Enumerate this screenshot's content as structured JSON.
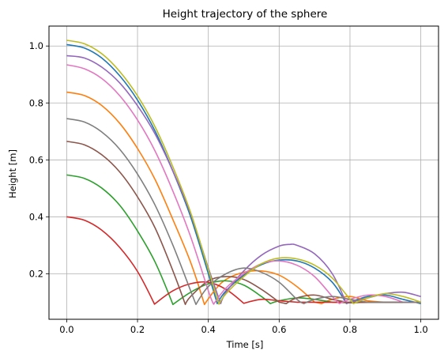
{
  "chart_data": {
    "type": "line",
    "title": "Height trajectory of the sphere",
    "xlabel": "Time [s]",
    "ylabel": "Height [m]",
    "xlim": [
      -0.05,
      1.05
    ],
    "ylim": [
      0.04,
      1.07
    ],
    "xticks": [
      0.0,
      0.2,
      0.4,
      0.6,
      0.8,
      1.0
    ],
    "xtick_labels": [
      "0.0",
      "0.2",
      "0.4",
      "0.6",
      "0.8",
      "1.0"
    ],
    "yticks": [
      0.2,
      0.4,
      0.6,
      0.8,
      1.0
    ],
    "ytick_labels": [
      "0.2",
      "0.4",
      "0.6",
      "0.8",
      "1.0"
    ],
    "grid": true,
    "legend": "none",
    "floor_height": 0.095,
    "series": [
      {
        "color": "#1f77b4",
        "x": [
          0.0,
          0.05,
          0.1,
          0.15,
          0.2,
          0.25,
          0.3,
          0.35,
          0.4,
          0.425,
          0.45,
          0.5,
          0.55,
          0.6,
          0.65,
          0.7,
          0.75,
          0.79,
          0.8,
          0.85,
          0.9,
          0.95,
          1.0
        ],
        "y": [
          1.005,
          0.993,
          0.957,
          0.895,
          0.81,
          0.7,
          0.56,
          0.4,
          0.2,
          0.095,
          0.14,
          0.195,
          0.232,
          0.248,
          0.245,
          0.22,
          0.17,
          0.095,
          0.1,
          0.12,
          0.125,
          0.11,
          0.095
        ]
      },
      {
        "color": "#ff7f0e",
        "x": [
          0.0,
          0.05,
          0.1,
          0.15,
          0.2,
          0.25,
          0.3,
          0.35,
          0.389,
          0.42,
          0.45,
          0.5,
          0.55,
          0.6,
          0.65,
          0.7,
          0.72,
          0.75,
          0.8,
          0.85,
          0.9,
          0.95,
          1.0
        ],
        "y": [
          0.838,
          0.826,
          0.79,
          0.728,
          0.64,
          0.53,
          0.39,
          0.24,
          0.092,
          0.145,
          0.18,
          0.205,
          0.21,
          0.195,
          0.155,
          0.1,
          0.095,
          0.11,
          0.12,
          0.105,
          0.1,
          0.1,
          0.1
        ]
      },
      {
        "color": "#2ca02c",
        "x": [
          0.0,
          0.05,
          0.1,
          0.15,
          0.2,
          0.25,
          0.3,
          0.35,
          0.4,
          0.45,
          0.5,
          0.55,
          0.575,
          0.6,
          0.65,
          0.7,
          0.75,
          0.8,
          0.85,
          0.9,
          0.95,
          1.0
        ],
        "y": [
          0.547,
          0.535,
          0.5,
          0.44,
          0.35,
          0.24,
          0.092,
          0.135,
          0.165,
          0.175,
          0.16,
          0.12,
          0.095,
          0.105,
          0.115,
          0.11,
          0.1,
          0.098,
          0.1,
          0.1,
          0.1,
          0.1
        ]
      },
      {
        "color": "#d62728",
        "x": [
          0.0,
          0.05,
          0.1,
          0.15,
          0.2,
          0.248,
          0.3,
          0.35,
          0.4,
          0.45,
          0.5,
          0.55,
          0.6,
          0.65,
          0.7,
          0.75,
          0.8,
          0.85,
          0.9,
          0.95,
          1.0
        ],
        "y": [
          0.4,
          0.388,
          0.352,
          0.292,
          0.208,
          0.093,
          0.14,
          0.165,
          0.17,
          0.145,
          0.096,
          0.11,
          0.105,
          0.1,
          0.1,
          0.1,
          0.1,
          0.1,
          0.1,
          0.1,
          0.1
        ]
      },
      {
        "color": "#9467bd",
        "x": [
          0.0,
          0.05,
          0.1,
          0.15,
          0.2,
          0.25,
          0.3,
          0.35,
          0.4,
          0.435,
          0.45,
          0.5,
          0.55,
          0.6,
          0.63,
          0.65,
          0.7,
          0.75,
          0.79,
          0.8,
          0.85,
          0.9,
          0.95,
          1.0
        ],
        "y": [
          0.966,
          0.958,
          0.925,
          0.87,
          0.79,
          0.69,
          0.56,
          0.41,
          0.22,
          0.095,
          0.135,
          0.21,
          0.265,
          0.297,
          0.303,
          0.3,
          0.27,
          0.2,
          0.095,
          0.1,
          0.115,
          0.13,
          0.135,
          0.12
        ]
      },
      {
        "color": "#8c564b",
        "x": [
          0.0,
          0.05,
          0.1,
          0.15,
          0.2,
          0.25,
          0.3,
          0.335,
          0.35,
          0.4,
          0.45,
          0.5,
          0.55,
          0.6,
          0.62,
          0.65,
          0.7,
          0.75,
          0.8,
          0.85,
          0.9,
          0.95,
          1.0
        ],
        "y": [
          0.665,
          0.653,
          0.617,
          0.557,
          0.47,
          0.36,
          0.21,
          0.092,
          0.12,
          0.175,
          0.19,
          0.18,
          0.145,
          0.1,
          0.095,
          0.115,
          0.125,
          0.11,
          0.098,
          0.1,
          0.1,
          0.1,
          0.1
        ]
      },
      {
        "color": "#e377c2",
        "x": [
          0.0,
          0.05,
          0.1,
          0.15,
          0.2,
          0.25,
          0.3,
          0.35,
          0.4,
          0.415,
          0.45,
          0.5,
          0.55,
          0.6,
          0.65,
          0.7,
          0.75,
          0.77,
          0.8,
          0.85,
          0.9,
          0.95,
          1.0
        ],
        "y": [
          0.934,
          0.92,
          0.885,
          0.825,
          0.74,
          0.63,
          0.49,
          0.33,
          0.14,
          0.093,
          0.15,
          0.2,
          0.235,
          0.245,
          0.23,
          0.19,
          0.12,
          0.095,
          0.11,
          0.125,
          0.12,
          0.1,
          0.1
        ]
      },
      {
        "color": "#7f7f7f",
        "x": [
          0.0,
          0.05,
          0.1,
          0.15,
          0.2,
          0.25,
          0.3,
          0.35,
          0.365,
          0.4,
          0.45,
          0.5,
          0.55,
          0.6,
          0.65,
          0.67,
          0.7,
          0.75,
          0.8,
          0.85,
          0.9,
          0.95,
          1.0
        ],
        "y": [
          0.745,
          0.733,
          0.697,
          0.637,
          0.55,
          0.44,
          0.3,
          0.14,
          0.092,
          0.155,
          0.2,
          0.22,
          0.205,
          0.17,
          0.11,
          0.095,
          0.11,
          0.12,
          0.11,
          0.1,
          0.1,
          0.1,
          0.1
        ]
      },
      {
        "color": "#bcbd22",
        "x": [
          0.0,
          0.05,
          0.1,
          0.15,
          0.2,
          0.25,
          0.3,
          0.35,
          0.4,
          0.43,
          0.45,
          0.5,
          0.55,
          0.6,
          0.65,
          0.7,
          0.75,
          0.8,
          0.81,
          0.85,
          0.9,
          0.95,
          1.0
        ],
        "y": [
          1.02,
          1.008,
          0.972,
          0.91,
          0.825,
          0.715,
          0.575,
          0.415,
          0.215,
          0.093,
          0.13,
          0.19,
          0.235,
          0.255,
          0.252,
          0.23,
          0.185,
          0.11,
          0.095,
          0.115,
          0.13,
          0.12,
          0.1
        ]
      }
    ]
  }
}
